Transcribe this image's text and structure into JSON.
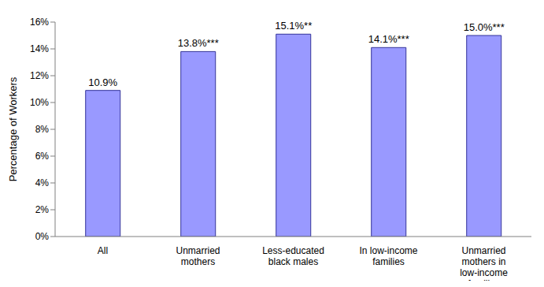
{
  "chart_data": {
    "type": "bar",
    "categories": [
      "All",
      "Unmarried mothers",
      "Less-educated black males",
      "In low-income families",
      "Unmarried mothers in low-income families"
    ],
    "values": [
      10.9,
      13.8,
      15.1,
      14.1,
      15.0
    ],
    "value_labels": [
      "10.9%",
      "13.8%***",
      "15.1%**",
      "14.1%***",
      "15.0%***"
    ],
    "data_labels": true,
    "color": "#9999ff",
    "y_label": "Percentage of Workers",
    "ylim": [
      0,
      16
    ],
    "yticks": [
      {
        "value": 0,
        "label": "0%"
      },
      {
        "value": 2,
        "label": "2%"
      },
      {
        "value": 4,
        "label": "4%"
      },
      {
        "value": 6,
        "label": "6%"
      },
      {
        "value": 8,
        "label": "8%"
      },
      {
        "value": 10,
        "label": "10%"
      },
      {
        "value": 12,
        "label": "12%"
      },
      {
        "value": 14,
        "label": "14%"
      },
      {
        "value": 16,
        "label": "16%"
      }
    ],
    "grid": false
  }
}
